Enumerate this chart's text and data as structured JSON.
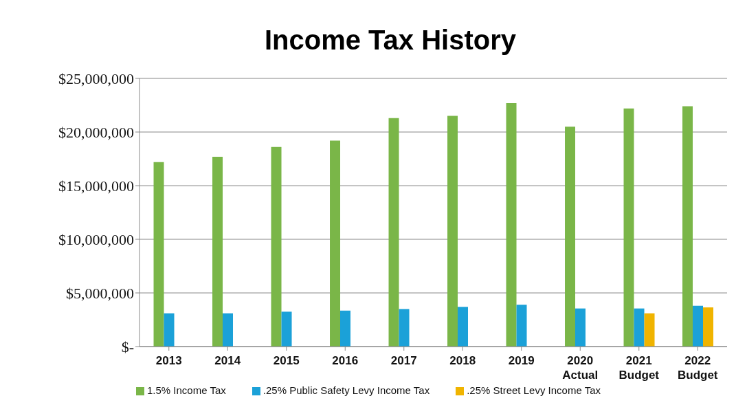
{
  "chart_data": {
    "type": "bar",
    "title": "Income Tax History",
    "categories": [
      "2013",
      "2014",
      "2015",
      "2016",
      "2017",
      "2018",
      "2019",
      "2020\nActual",
      "2021\nBudget",
      "2022\nBudget"
    ],
    "series": [
      {
        "name": "1.5% Income Tax",
        "color": "#7ab648",
        "values": [
          17200000,
          17700000,
          18600000,
          19200000,
          21300000,
          21500000,
          22700000,
          20500000,
          22200000,
          22400000
        ]
      },
      {
        "name": ".25% Public Safety Levy Income Tax",
        "color": "#1ba1d8",
        "values": [
          3100000,
          3100000,
          3250000,
          3350000,
          3500000,
          3700000,
          3900000,
          3550000,
          3550000,
          3800000
        ]
      },
      {
        "name": ".25% Street Levy Income Tax",
        "color": "#f0b400",
        "values": [
          null,
          null,
          null,
          null,
          null,
          null,
          null,
          null,
          3100000,
          3650000
        ]
      }
    ],
    "ylim": [
      0,
      25000000
    ],
    "yticks": [
      {
        "value": 0,
        "label": "$-"
      },
      {
        "value": 5000000,
        "label": "$5,000,000"
      },
      {
        "value": 10000000,
        "label": "$10,000,000"
      },
      {
        "value": 15000000,
        "label": "$15,000,000"
      },
      {
        "value": 20000000,
        "label": "$20,000,000"
      },
      {
        "value": 25000000,
        "label": "$25,000,000"
      }
    ],
    "grid": "y",
    "legend": "bottom"
  }
}
